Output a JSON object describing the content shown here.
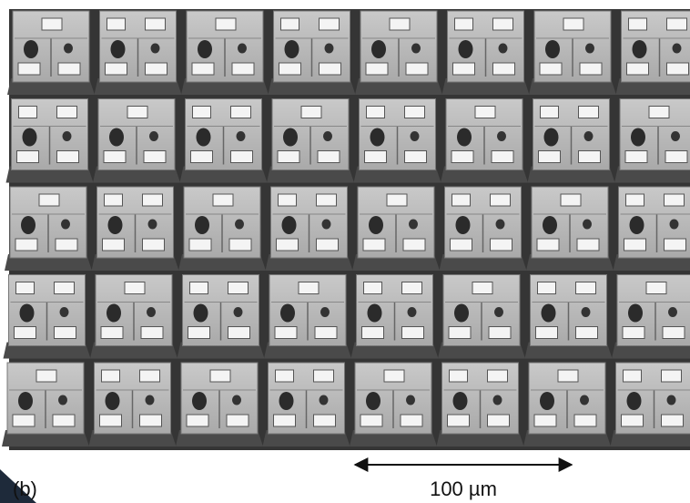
{
  "panel_label": "(b)",
  "scale_bar": {
    "label": "100 µm"
  }
}
